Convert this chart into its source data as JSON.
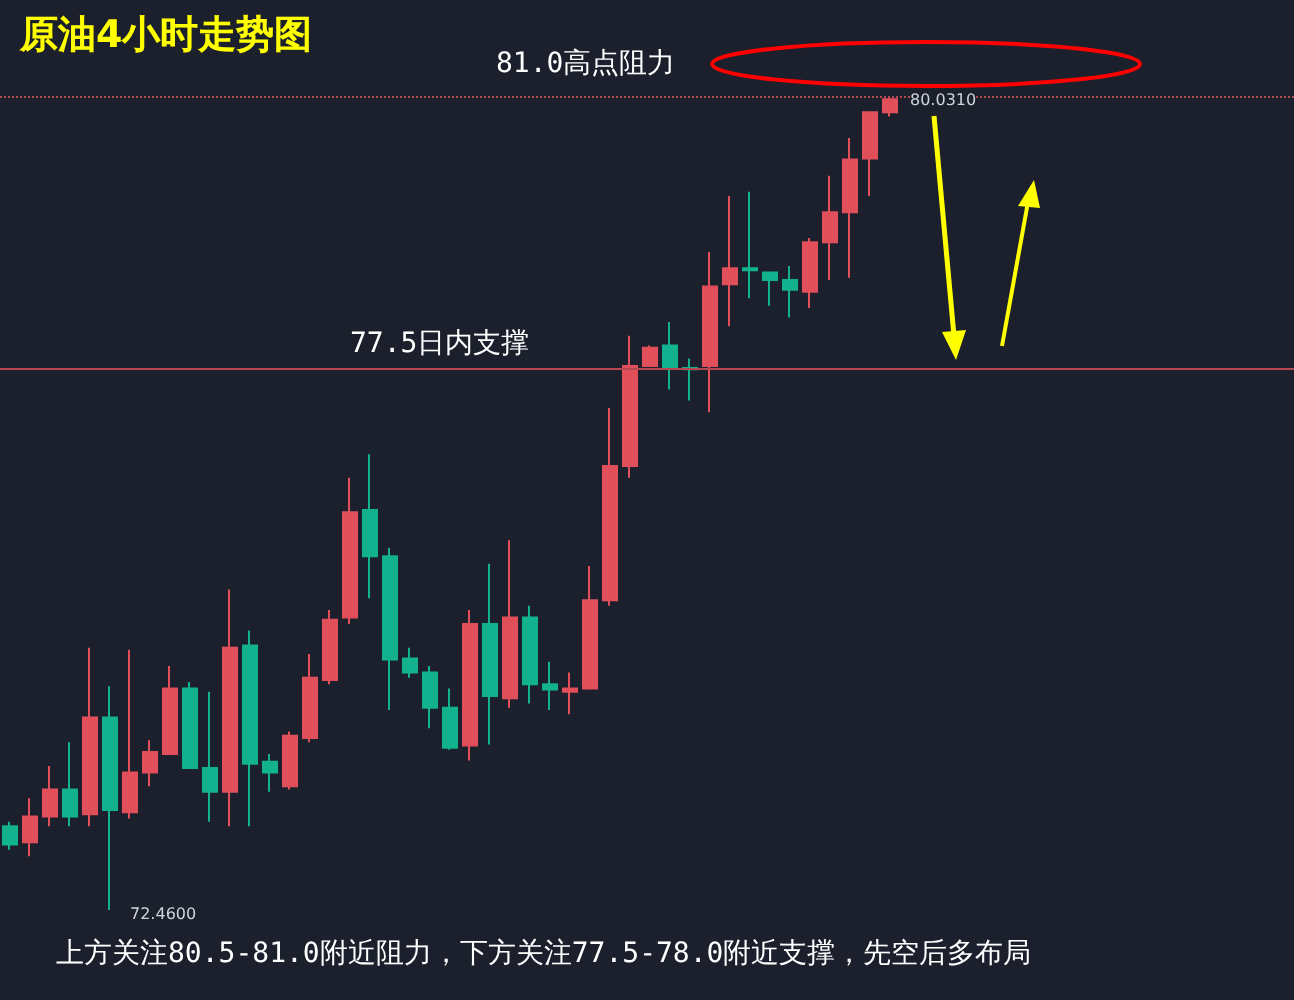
{
  "chart_data": {
    "type": "candlestick",
    "title": "原油4小时走势图",
    "categories": [
      null,
      null,
      null,
      null,
      null,
      null,
      null,
      null,
      null,
      null,
      null,
      null,
      null,
      null,
      null,
      null,
      null,
      null,
      null,
      null,
      null,
      null,
      null,
      null,
      null,
      null,
      null,
      null,
      null,
      null,
      null,
      null,
      null,
      null,
      null,
      null,
      null,
      null,
      null,
      null,
      null,
      null,
      null,
      null,
      null
    ],
    "ohlc": [
      [
        73.24,
        73.28,
        73.02,
        73.07
      ],
      [
        73.09,
        73.5,
        72.96,
        73.33
      ],
      [
        73.33,
        73.8,
        73.24,
        73.58
      ],
      [
        73.58,
        74.02,
        73.24,
        73.33
      ],
      [
        73.35,
        74.9,
        73.24,
        74.25
      ],
      [
        74.25,
        74.54,
        72.46,
        73.39
      ],
      [
        73.37,
        74.88,
        73.31,
        73.74
      ],
      [
        73.74,
        74.04,
        73.61,
        73.93
      ],
      [
        73.91,
        74.73,
        73.91,
        74.52
      ],
      [
        74.52,
        74.58,
        73.78,
        73.78
      ],
      [
        73.78,
        74.49,
        73.28,
        73.56
      ],
      [
        73.56,
        75.44,
        73.24,
        74.9
      ],
      [
        74.92,
        75.06,
        73.24,
        73.82
      ],
      [
        73.84,
        73.91,
        73.56,
        73.74
      ],
      [
        73.61,
        74.12,
        73.58,
        74.08
      ],
      [
        74.06,
        74.84,
        74.02,
        74.62
      ],
      [
        74.6,
        75.25,
        74.56,
        75.16
      ],
      [
        75.18,
        76.48,
        75.12,
        76.16
      ],
      [
        76.18,
        76.7,
        75.36,
        75.75
      ],
      [
        75.75,
        75.83,
        74.32,
        74.79
      ],
      [
        74.8,
        74.9,
        74.62,
        74.67
      ],
      [
        74.67,
        74.73,
        74.15,
        74.34
      ],
      [
        74.34,
        74.52,
        73.95,
        73.97
      ],
      [
        73.99,
        75.25,
        73.85,
        75.12
      ],
      [
        75.12,
        75.68,
        74.0,
        74.45
      ],
      [
        74.43,
        75.9,
        74.34,
        75.18
      ],
      [
        75.18,
        75.29,
        74.38,
        74.56
      ],
      [
        74.56,
        74.77,
        74.32,
        74.51
      ],
      [
        74.49,
        74.67,
        74.28,
        74.52
      ],
      [
        74.52,
        75.66,
        74.52,
        75.34
      ],
      [
        75.34,
        77.13,
        75.29,
        76.59
      ],
      [
        76.59,
        77.8,
        76.48,
        77.52
      ],
      [
        77.52,
        77.71,
        77.52,
        77.69
      ],
      [
        77.71,
        77.93,
        77.3,
        77.5
      ],
      [
        77.5,
        77.59,
        77.2,
        77.49
      ],
      [
        77.52,
        78.58,
        77.09,
        78.26
      ],
      [
        78.28,
        79.1,
        77.89,
        78.43
      ],
      [
        78.43,
        79.14,
        78.15,
        78.41
      ],
      [
        78.39,
        78.39,
        78.08,
        78.32
      ],
      [
        78.32,
        78.45,
        77.97,
        78.23
      ],
      [
        78.21,
        78.71,
        78.06,
        78.67
      ],
      [
        78.67,
        79.29,
        78.32,
        78.95
      ],
      [
        78.95,
        79.64,
        78.34,
        79.44
      ],
      [
        79.45,
        79.88,
        79.1,
        79.88
      ],
      [
        79.88,
        80.031,
        79.84,
        80.0
      ]
    ],
    "colors": [
      "#12b28f",
      "#e14f5b",
      "#e14f5b",
      "#12b28f",
      "#e14f5b",
      "#12b28f",
      "#e14f5b",
      "#e14f5b",
      "#e14f5b",
      "#12b28f",
      "#12b28f",
      "#e14f5b",
      "#12b28f",
      "#12b28f",
      "#e14f5b",
      "#e14f5b",
      "#e14f5b",
      "#e14f5b",
      "#12b28f",
      "#12b28f",
      "#12b28f",
      "#12b28f",
      "#12b28f",
      "#e14f5b",
      "#12b28f",
      "#e14f5b",
      "#12b28f",
      "#12b28f",
      "#e14f5b",
      "#e14f5b",
      "#e14f5b",
      "#e14f5b",
      "#e14f5b",
      "#12b28f",
      "#12b28f",
      "#e14f5b",
      "#e14f5b",
      "#12b28f",
      "#12b28f",
      "#12b28f",
      "#e14f5b",
      "#e14f5b",
      "#e14f5b",
      "#e14f5b",
      "#e14f5b"
    ],
    "ref_lines": [
      {
        "axis": "y",
        "value": 77.5,
        "label": "77.5日内支撑",
        "color": "#b5474f"
      },
      {
        "axis": "y",
        "value": 80.031,
        "color": "#b5474f",
        "line_style": "dotted"
      }
    ],
    "annotations": [
      "81.0高点阻力",
      "80.0310",
      "72.4600",
      "上方关注80.5-81.0附近阻力，下方关注77.5-78.0附近支撑，先空后多布局"
    ],
    "line_style": "solid"
  }
}
